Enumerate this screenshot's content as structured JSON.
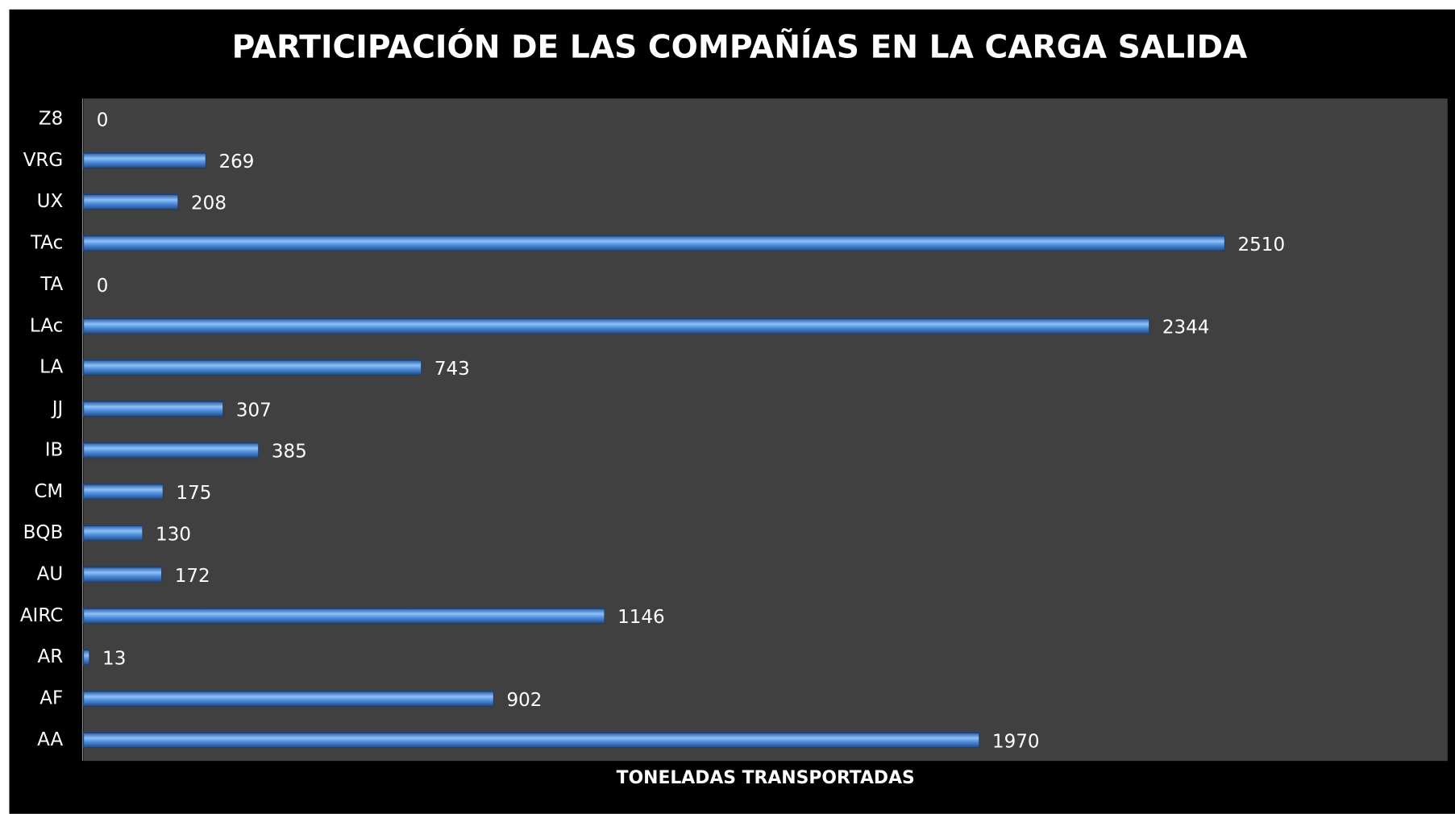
{
  "chart_data": {
    "type": "bar",
    "orientation": "horizontal",
    "title": "PARTICIPACIÓN DE LAS COMPAÑÍAS EN LA CARGA SALIDA",
    "x_label": "TONELADAS TRANSPORTADAS",
    "categories": [
      "AA",
      "AF",
      "AR",
      "AIRC",
      "AU",
      "BQB",
      "CM",
      "IB",
      "JJ",
      "LA",
      "LAc",
      "TA",
      "TAc",
      "UX",
      "VRG",
      "Z8"
    ],
    "values": [
      1970,
      902,
      13,
      1146,
      172,
      130,
      175,
      385,
      307,
      743,
      2344,
      0,
      2510,
      208,
      269,
      0
    ],
    "color": "#4f8fdc",
    "xlim": [
      0,
      3000
    ]
  }
}
